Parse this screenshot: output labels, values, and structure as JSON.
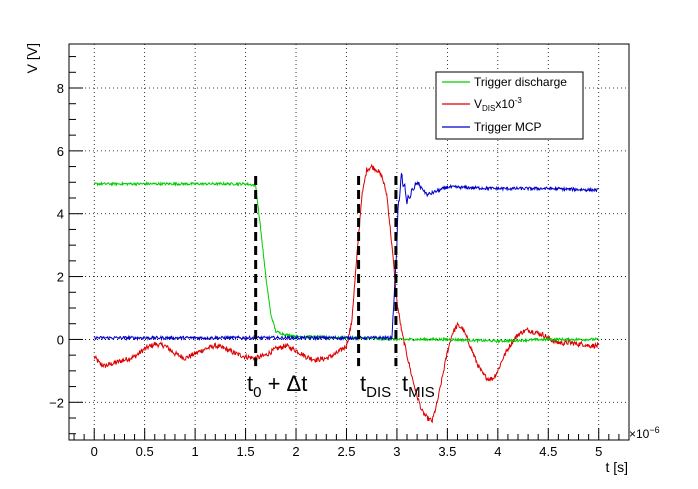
{
  "chart_data": {
    "type": "line",
    "xlabel": "t [s]",
    "ylabel": "V [V]",
    "x_multiplier": "×10",
    "x_multiplier_exp": "−6",
    "xlim": [
      -0.25,
      5.3
    ],
    "ylim": [
      -3.2,
      9.4
    ],
    "xticks": [
      0,
      0.5,
      1,
      1.5,
      2,
      2.5,
      3,
      3.5,
      4,
      4.5,
      5
    ],
    "xtick_labels": [
      "0",
      "0.5",
      "1",
      "1.5",
      "2",
      "2.5",
      "3",
      "3.5",
      "4",
      "4.5",
      "5"
    ],
    "yticks": [
      -2,
      0,
      2,
      4,
      6,
      8
    ],
    "ytick_labels": [
      "−2",
      "0",
      "2",
      "4",
      "6",
      "8"
    ],
    "grid": true,
    "legend_position": "top-right",
    "series": [
      {
        "name": "Trigger discharge",
        "color": "#00cc00",
        "x": [
          0,
          0.5,
          1,
          1.5,
          1.6,
          1.65,
          1.7,
          1.75,
          1.8,
          1.9,
          2,
          2.5,
          3,
          3.5,
          4,
          4.5,
          5
        ],
        "y": [
          4.95,
          4.95,
          4.95,
          4.95,
          4.9,
          3.5,
          2.0,
          0.8,
          0.25,
          0.15,
          0.1,
          0.05,
          0.0,
          0.0,
          -0.05,
          0.0,
          0.0
        ],
        "noise": 0.04
      },
      {
        "name_main": "V",
        "name_sub": "DIS",
        "name_suffix": "x10",
        "name_sup": "-3",
        "color": "#dd0000",
        "x": [
          0,
          0.05,
          0.1,
          0.2,
          0.3,
          0.4,
          0.5,
          0.6,
          0.7,
          0.8,
          0.9,
          1.0,
          1.1,
          1.2,
          1.3,
          1.4,
          1.5,
          1.6,
          1.7,
          1.8,
          1.9,
          2.0,
          2.1,
          2.2,
          2.3,
          2.4,
          2.5,
          2.55,
          2.6,
          2.65,
          2.7,
          2.75,
          2.8,
          2.85,
          2.9,
          2.95,
          3.0,
          3.05,
          3.1,
          3.15,
          3.2,
          3.25,
          3.3,
          3.35,
          3.4,
          3.45,
          3.5,
          3.55,
          3.6,
          3.65,
          3.7,
          3.75,
          3.8,
          3.85,
          3.9,
          3.95,
          4.0,
          4.05,
          4.1,
          4.15,
          4.2,
          4.25,
          4.3,
          4.35,
          4.4,
          4.45,
          4.5,
          4.55,
          4.6,
          4.65,
          4.7,
          4.75,
          4.8,
          4.85,
          4.9,
          4.95,
          5.0
        ],
        "y": [
          -0.55,
          -0.75,
          -0.85,
          -0.75,
          -0.65,
          -0.55,
          -0.3,
          -0.15,
          -0.2,
          -0.45,
          -0.6,
          -0.45,
          -0.3,
          -0.2,
          -0.3,
          -0.45,
          -0.55,
          -0.6,
          -0.5,
          -0.3,
          -0.2,
          -0.35,
          -0.55,
          -0.65,
          -0.6,
          -0.45,
          -0.2,
          0.5,
          2.5,
          4.5,
          5.4,
          5.5,
          5.4,
          5.2,
          4.6,
          3.0,
          1.2,
          0.2,
          -0.5,
          -1.2,
          -1.8,
          -2.3,
          -2.5,
          -2.6,
          -2.0,
          -1.2,
          -0.4,
          0.2,
          0.45,
          0.35,
          0.0,
          -0.4,
          -0.8,
          -1.1,
          -1.25,
          -1.25,
          -1.0,
          -0.6,
          -0.3,
          -0.05,
          0.15,
          0.25,
          0.3,
          0.25,
          0.2,
          0.15,
          0.05,
          -0.05,
          -0.1,
          -0.12,
          -0.1,
          -0.12,
          -0.15,
          -0.15,
          -0.2,
          -0.2,
          -0.2
        ],
        "noise": 0.08
      },
      {
        "name": "Trigger MCP",
        "color": "#0000cc",
        "x": [
          0,
          0.5,
          1,
          1.5,
          2,
          2.5,
          2.95,
          3.0,
          3.02,
          3.05,
          3.1,
          3.2,
          3.3,
          3.5,
          4,
          4.5,
          5
        ],
        "y": [
          0.05,
          0.05,
          0.05,
          0.05,
          0.05,
          0.05,
          0.05,
          3.0,
          4.6,
          5.2,
          4.4,
          5.0,
          4.6,
          4.85,
          4.8,
          4.8,
          4.75
        ],
        "noise": 0.05
      }
    ],
    "markers": [
      {
        "x": 1.6,
        "y_top": 5.2,
        "y_bottom": -0.85
      },
      {
        "x": 2.62,
        "y_top": 5.2,
        "y_bottom": -0.85
      },
      {
        "x": 2.99,
        "y_top": 5.2,
        "y_bottom": -0.85
      }
    ],
    "annotations": {
      "a1_main": "t",
      "a1_sub": "0",
      "a1_rest": " + Δt",
      "a2_main": "t",
      "a2_sub": "DIS",
      "a3_main": "t",
      "a3_sub": "MIS"
    }
  }
}
